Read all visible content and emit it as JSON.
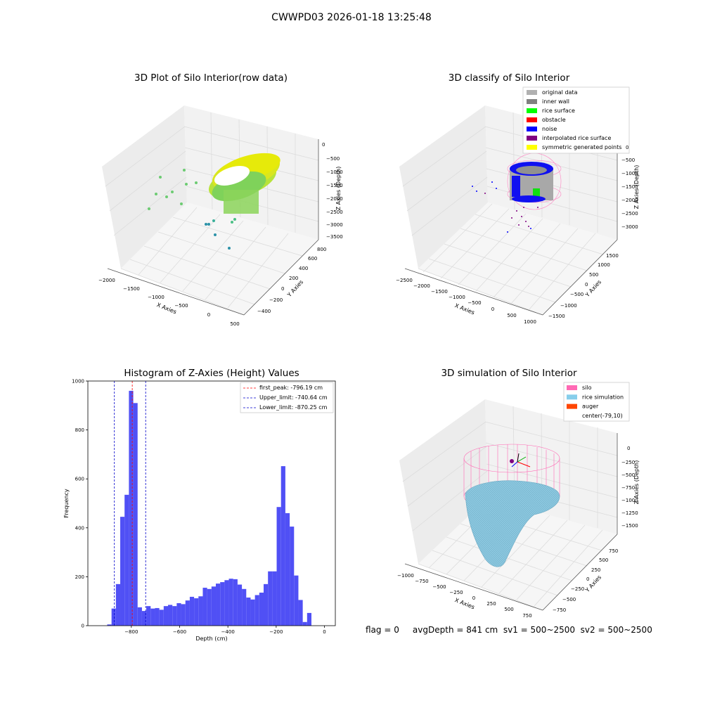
{
  "suptitle": "CWWPD03 2026-01-18 13:25:48",
  "status_text": "flag = 0     avgDepth = 841 cm  sv1 = 500~2500  sv2 = 500~2500",
  "chart_data": [
    {
      "type": "scatter",
      "title": "3D Plot of Silo Interior(row data)",
      "xlabel": "X Axies",
      "ylabel": "Y Axies",
      "zlabel": "Z Axies (Depth)",
      "xticks": [
        "−2000",
        "−1500",
        "−1000",
        "−500",
        "0",
        "500"
      ],
      "yticks": [
        "−400",
        "−200",
        "0",
        "200",
        "400",
        "600",
        "800"
      ],
      "zticks": [
        "0",
        "−500",
        "−1000",
        "−1500",
        "−2000",
        "−2500",
        "−3000",
        "−3500"
      ],
      "colormap": "viridis",
      "grid": true
    },
    {
      "type": "scatter",
      "title": "3D classify of Silo Interior",
      "xlabel": "X Axies",
      "ylabel": "Y Axies",
      "zlabel": "Z Axies (Depth)",
      "xticks": [
        "−2500",
        "−2000",
        "−1500",
        "−1000",
        "−500",
        "0",
        "500",
        "1000"
      ],
      "yticks": [
        "−1500",
        "−1000",
        "−500",
        "0",
        "500",
        "1000",
        "1500"
      ],
      "zticks": [
        "0",
        "−500",
        "−1000",
        "−1500",
        "−2000",
        "−2500",
        "−3000"
      ],
      "legend_position": "top-right",
      "legend": [
        {
          "label": "original data",
          "color": "#b0b0b0"
        },
        {
          "label": "inner wall",
          "color": "#808080"
        },
        {
          "label": "rice surface",
          "color": "#00ff00"
        },
        {
          "label": "obstacle",
          "color": "#ff0000"
        },
        {
          "label": "noise",
          "color": "#0000ff"
        },
        {
          "label": "interpolated rice surface",
          "color": "#800080"
        },
        {
          "label": "symmetric generated points",
          "color": "#ffff00"
        }
      ],
      "grid": true
    },
    {
      "type": "bar",
      "title": "Histogram of Z-Axies (Height) Values",
      "xlabel": "Depth (cm)",
      "ylabel": "Frequency",
      "xlim": [
        -980,
        45
      ],
      "ylim": [
        0,
        1000
      ],
      "xticks": [
        -800,
        -600,
        -400,
        -200,
        0
      ],
      "yticks": [
        0,
        200,
        400,
        600,
        800,
        1000
      ],
      "bar_color": "#5050f5",
      "bin_start": -900,
      "bin_width": 18,
      "values": [
        5,
        70,
        170,
        445,
        535,
        960,
        910,
        75,
        60,
        80,
        70,
        72,
        65,
        80,
        85,
        80,
        92,
        88,
        103,
        118,
        112,
        120,
        155,
        150,
        160,
        172,
        178,
        186,
        192,
        190,
        168,
        150,
        115,
        107,
        125,
        135,
        170,
        222,
        222,
        485,
        652,
        460,
        405,
        205,
        105,
        15,
        52
      ],
      "vlines": [
        {
          "label": "first_peak: -796.19 cm",
          "x": -796.19,
          "color": "#ff0000"
        },
        {
          "label": "Upper_limit: -740.64 cm",
          "x": -740.64,
          "color": "#0000cc"
        },
        {
          "label": "Lower_limit: -870.25 cm",
          "x": -870.25,
          "color": "#0000cc"
        }
      ],
      "legend_position": "top-right"
    },
    {
      "type": "surface",
      "title": "3D simulation of Silo Interior",
      "xlabel": "X Axies",
      "ylabel": "Y Axies",
      "zlabel": "Z Axies (Depth)",
      "xticks": [
        "−1000",
        "−750",
        "−500",
        "−250",
        "0",
        "250",
        "500",
        "750"
      ],
      "yticks": [
        "−750",
        "−500",
        "−250",
        "0",
        "250",
        "500",
        "750"
      ],
      "zticks": [
        "0",
        "−250",
        "−500",
        "−750",
        "−1000",
        "−1250",
        "−1500"
      ],
      "legend_position": "top-right",
      "legend": [
        {
          "label": "silo",
          "color": "#ff69b4"
        },
        {
          "label": "rice simulation",
          "color": "#87ceeb"
        },
        {
          "label": "auger",
          "color": "#ff4500"
        },
        {
          "label": "center(-79,10)",
          "color": "#ffffff"
        }
      ],
      "grid": true
    }
  ]
}
